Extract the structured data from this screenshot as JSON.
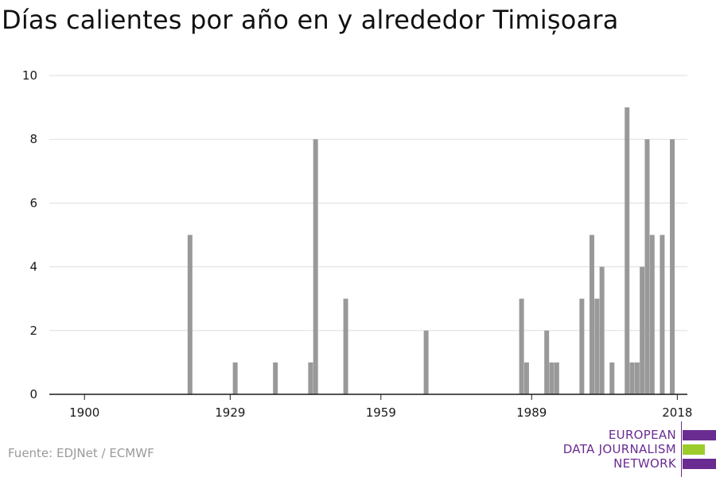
{
  "title": "Días calientes por año en y alrededor Timișoara",
  "source": "Fuente: EDJNet / ECMWF",
  "logo": {
    "lines": [
      "EUROPEAN",
      "DATA JOURNALISM",
      "NETWORK"
    ],
    "bar_colors": [
      "#6b2c91",
      "#9ccc2c",
      "#6b2c91"
    ]
  },
  "colors": {
    "bar": "#999999",
    "grid": "#dddddd",
    "axis": "#1a1a1a"
  },
  "chart_data": {
    "type": "bar",
    "title": "Días calientes por año en y alrededor Timișoara",
    "xlabel": "",
    "ylabel": "",
    "xlim": [
      1893,
      2020
    ],
    "ylim": [
      0,
      10
    ],
    "x_ticks": [
      1900,
      1929,
      1959,
      1989,
      2018
    ],
    "y_ticks": [
      0,
      2,
      4,
      6,
      8,
      10
    ],
    "grid": true,
    "x": [
      1921,
      1930,
      1938,
      1945,
      1946,
      1952,
      1968,
      1987,
      1988,
      1992,
      1993,
      1994,
      1999,
      2001,
      2002,
      2003,
      2005,
      2008,
      2009,
      2010,
      2011,
      2012,
      2013,
      2015,
      2017
    ],
    "values": [
      5,
      1,
      1,
      1,
      8,
      3,
      2,
      3,
      1,
      2,
      1,
      1,
      3,
      5,
      3,
      4,
      1,
      9,
      1,
      1,
      4,
      8,
      5,
      5,
      8
    ]
  }
}
